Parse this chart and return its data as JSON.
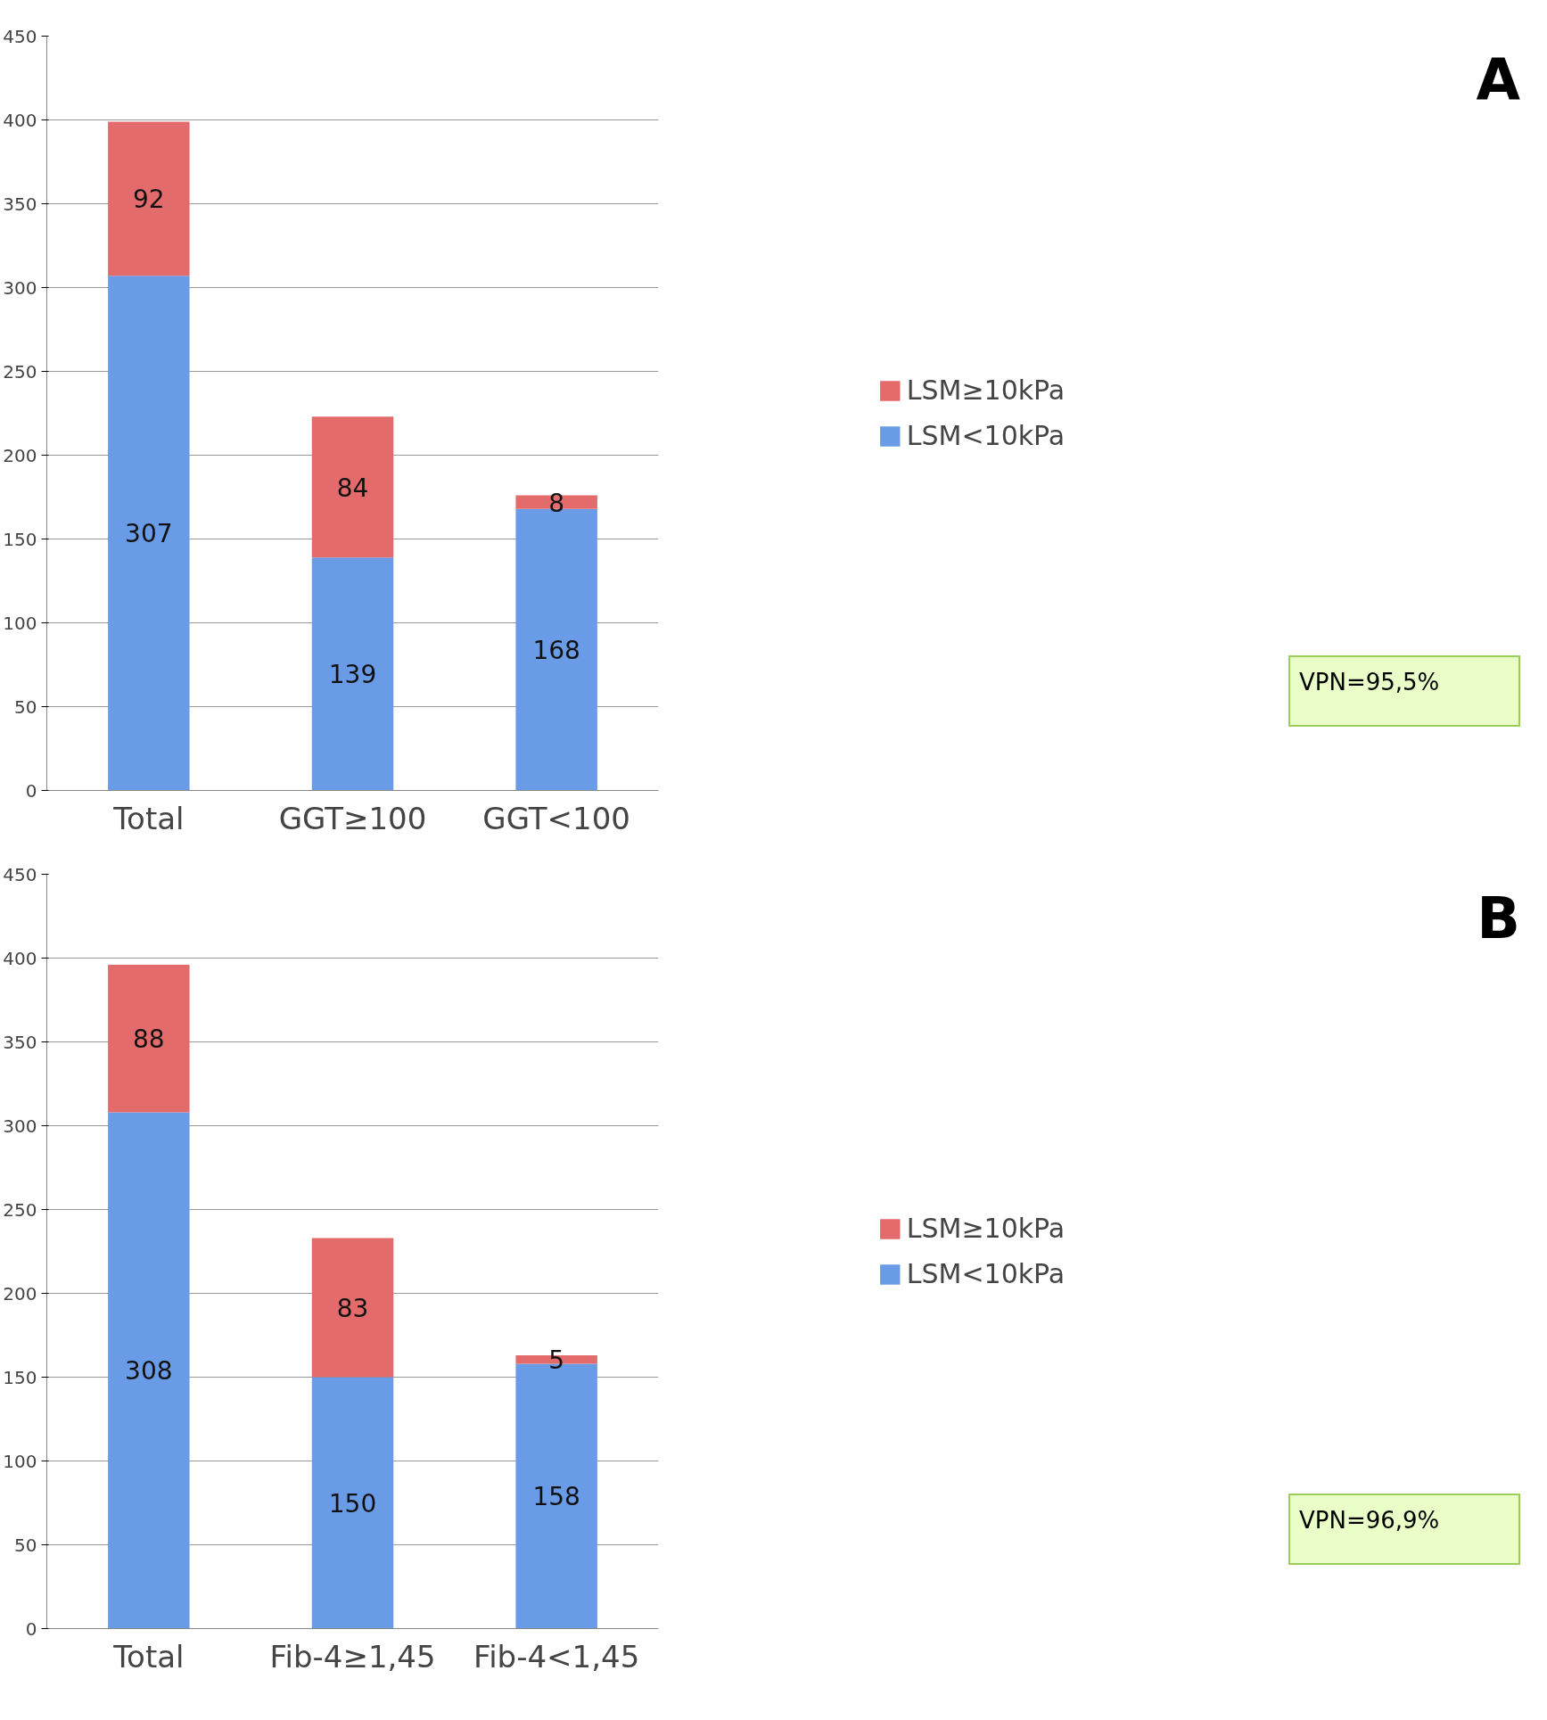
{
  "chart_data": [
    {
      "type": "bar",
      "stacked": true,
      "categories": [
        "Total",
        "GGT≥100",
        "GGT<100"
      ],
      "series": [
        {
          "name": "LSM<10kPa",
          "color": "#6a9be6",
          "values": [
            307,
            139,
            168
          ]
        },
        {
          "name": "LSM≥10kPa",
          "color": "#e36b6b",
          "values": [
            92,
            84,
            8
          ]
        }
      ],
      "data_labels": true,
      "ylim": [
        0,
        450
      ],
      "yticks": [
        0,
        50,
        100,
        150,
        200,
        250,
        300,
        350,
        400,
        450
      ],
      "grid": "y",
      "legend": "right",
      "annotations": [
        "A",
        "VPN=95,5%"
      ]
    },
    {
      "type": "bar",
      "stacked": true,
      "categories": [
        "Total",
        "Fib-4≥1,45",
        "Fib-4<1,45"
      ],
      "series": [
        {
          "name": "LSM<10kPa",
          "color": "#6a9be6",
          "values": [
            308,
            150,
            158
          ]
        },
        {
          "name": "LSM≥10kPa",
          "color": "#e36b6b",
          "values": [
            88,
            83,
            5
          ]
        }
      ],
      "data_labels": true,
      "ylim": [
        0,
        450
      ],
      "yticks": [
        0,
        50,
        100,
        150,
        200,
        250,
        300,
        350,
        400,
        450
      ],
      "grid": "y",
      "legend": "right",
      "annotations": [
        "B",
        "VPN=96,9%"
      ]
    }
  ]
}
